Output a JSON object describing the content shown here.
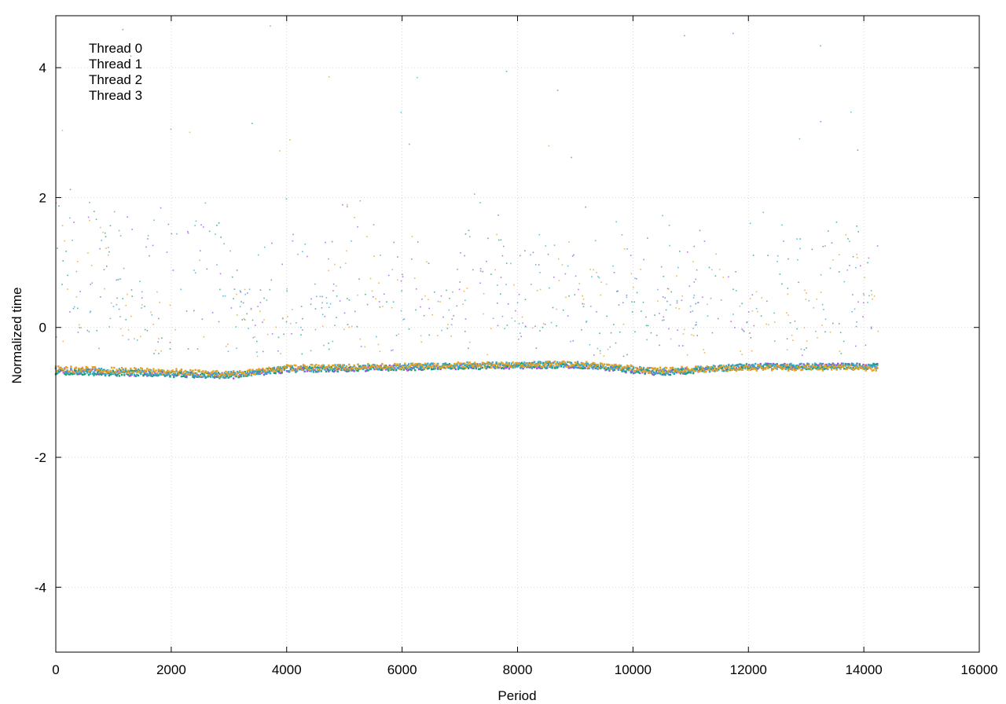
{
  "chart_data": {
    "type": "scatter",
    "title": "",
    "xlabel": "Period",
    "ylabel": "Normalized time",
    "xlim": [
      0,
      16000
    ],
    "ylim": [
      -5,
      4.8
    ],
    "xticks": [
      0,
      2000,
      4000,
      6000,
      8000,
      10000,
      12000,
      14000,
      16000
    ],
    "yticks": [
      -4,
      -2,
      0,
      2,
      4
    ],
    "xtick_labels": [
      "0",
      "2000",
      "4000",
      "6000",
      "8000",
      "10000",
      "12000",
      "14000",
      "16000"
    ],
    "ytick_labels": [
      "-4",
      "-2",
      "0",
      "2",
      "4"
    ],
    "grid": true,
    "legend": {
      "position": "top-left",
      "entries": [
        "Thread 0",
        "Thread 1",
        "Thread 2",
        "Thread 3"
      ]
    },
    "series": [
      {
        "name": "Thread 0",
        "color": "#9b4fe0",
        "x_range": [
          0,
          14250
        ],
        "baseline": [
          [
            0,
            -0.67
          ],
          [
            2000,
            -0.72
          ],
          [
            3000,
            -0.75
          ],
          [
            4000,
            -0.65
          ],
          [
            6000,
            -0.62
          ],
          [
            7000,
            -0.6
          ],
          [
            9000,
            -0.58
          ],
          [
            10500,
            -0.7
          ],
          [
            12000,
            -0.6
          ],
          [
            14250,
            -0.6
          ]
        ],
        "bursts": [
          [
            0,
            3.0
          ],
          [
            500,
            2.4
          ],
          [
            1000,
            2.2
          ],
          [
            1800,
            2.0
          ],
          [
            2600,
            2.1
          ],
          [
            4000,
            2.0
          ],
          [
            5000,
            2.0
          ],
          [
            6200,
            1.9
          ],
          [
            7500,
            2.1
          ],
          [
            8500,
            2.0
          ],
          [
            9200,
            2.0
          ],
          [
            10000,
            1.9
          ],
          [
            11300,
            1.8
          ],
          [
            12500,
            1.6
          ],
          [
            13300,
            1.7
          ],
          [
            14200,
            1.4
          ]
        ]
      },
      {
        "name": "Thread 1",
        "color": "#1a9e73",
        "x_range": [
          0,
          14250
        ],
        "baseline": [
          [
            0,
            -0.68
          ],
          [
            2000,
            -0.72
          ],
          [
            3000,
            -0.74
          ],
          [
            4000,
            -0.65
          ],
          [
            6000,
            -0.62
          ],
          [
            7000,
            -0.6
          ],
          [
            9000,
            -0.58
          ],
          [
            10500,
            -0.7
          ],
          [
            12000,
            -0.6
          ],
          [
            14250,
            -0.6
          ]
        ],
        "bursts": [
          [
            0,
            2.9
          ],
          [
            800,
            2.2
          ],
          [
            2700,
            1.9
          ],
          [
            7400,
            2.2
          ],
          [
            11000,
            1.6
          ],
          [
            12500,
            2.0
          ],
          [
            12900,
            1.8
          ],
          [
            13500,
            1.7
          ],
          [
            14000,
            1.9
          ]
        ]
      },
      {
        "name": "Thread 2",
        "color": "#36a8d0",
        "x_range": [
          0,
          14250
        ],
        "baseline": [
          [
            0,
            -0.66
          ],
          [
            2000,
            -0.7
          ],
          [
            3000,
            -0.73
          ],
          [
            4000,
            -0.64
          ],
          [
            6000,
            -0.6
          ],
          [
            7000,
            -0.58
          ],
          [
            9000,
            -0.57
          ],
          [
            10500,
            -0.68
          ],
          [
            12000,
            -0.6
          ],
          [
            14250,
            -0.6
          ]
        ],
        "bursts": [
          [
            0,
            3.0
          ],
          [
            500,
            2.4
          ],
          [
            1000,
            2.3
          ],
          [
            1800,
            2.0
          ],
          [
            2600,
            2.1
          ],
          [
            4000,
            2.1
          ],
          [
            5200,
            2.2
          ],
          [
            7400,
            2.4
          ],
          [
            8600,
            2.0
          ],
          [
            9600,
            2.2
          ],
          [
            10400,
            2.0
          ],
          [
            12200,
            2.0
          ],
          [
            12800,
            2.1
          ],
          [
            13500,
            1.8
          ],
          [
            14200,
            1.9
          ]
        ]
      },
      {
        "name": "Thread 3",
        "color": "#e6a020",
        "x_range": [
          0,
          14250
        ],
        "baseline": [
          [
            0,
            -0.64
          ],
          [
            2000,
            -0.68
          ],
          [
            3000,
            -0.72
          ],
          [
            4000,
            -0.62
          ],
          [
            6000,
            -0.6
          ],
          [
            7000,
            -0.58
          ],
          [
            9000,
            -0.56
          ],
          [
            10500,
            -0.66
          ],
          [
            12000,
            -0.62
          ],
          [
            14250,
            -0.62
          ]
        ],
        "bursts": [
          [
            0,
            2.3
          ],
          [
            700,
            1.9
          ],
          [
            2300,
            1.8
          ],
          [
            4600,
            1.7
          ],
          [
            5100,
            2.0
          ],
          [
            6300,
            1.6
          ],
          [
            7600,
            1.5
          ],
          [
            9000,
            1.5
          ],
          [
            10000,
            1.5
          ],
          [
            11100,
            1.3
          ],
          [
            11400,
            1.2
          ],
          [
            13800,
            1.6
          ]
        ]
      }
    ]
  }
}
